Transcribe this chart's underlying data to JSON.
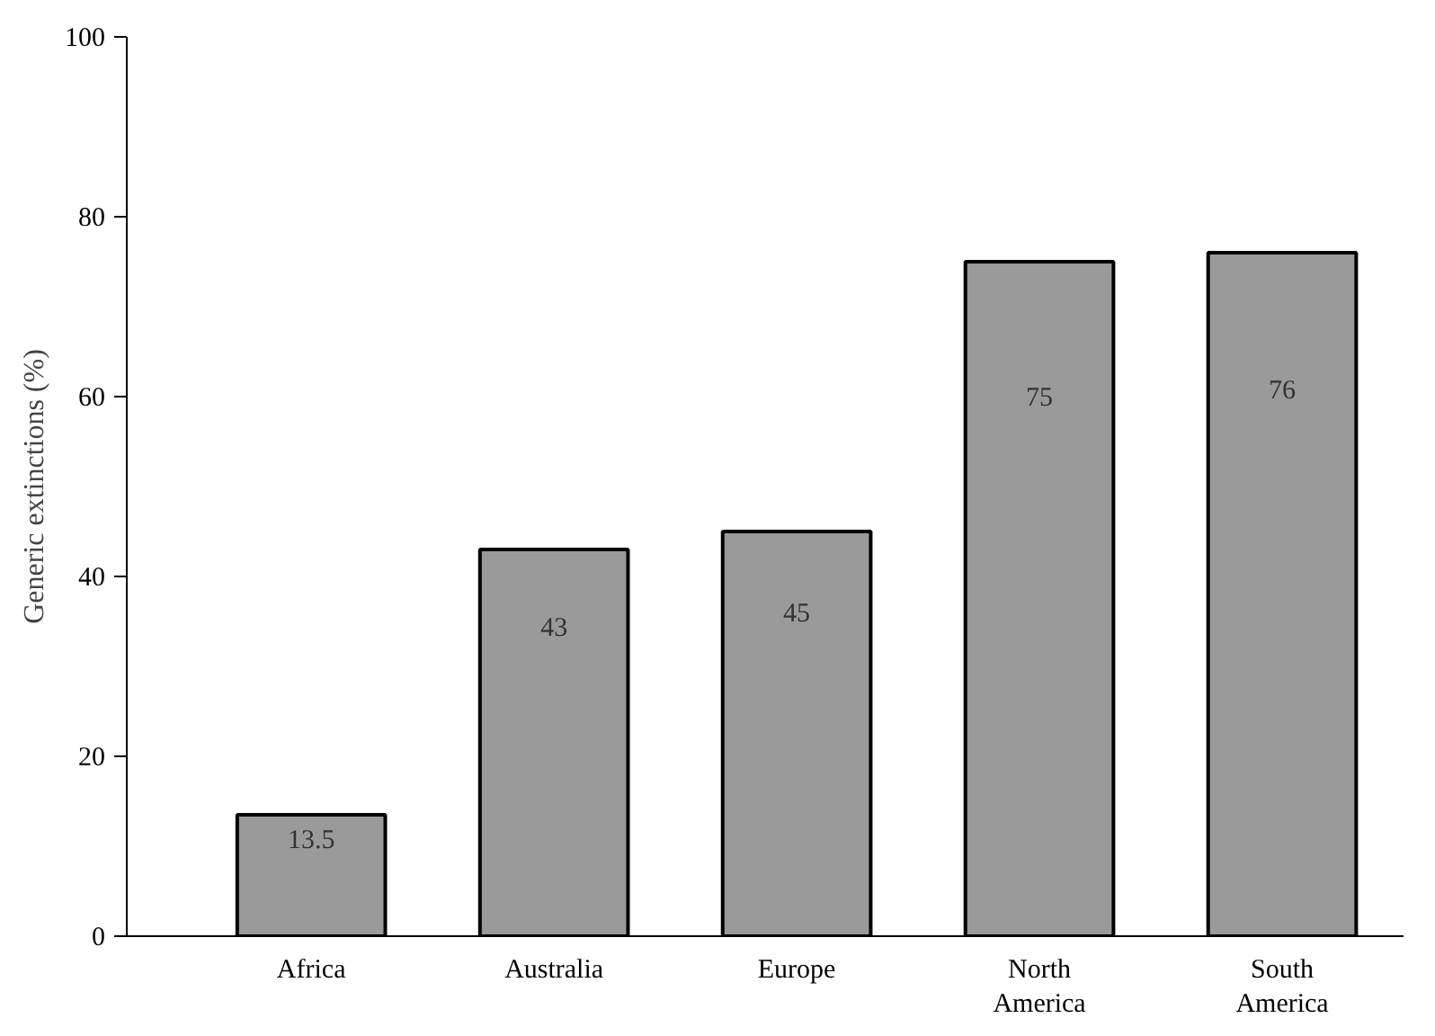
{
  "chart_data": {
    "type": "bar",
    "ylabel": "Generic extinctions (%)",
    "categories": [
      "Africa",
      "Australia",
      "Europe",
      "North\nAmerica",
      "South\nAmerica"
    ],
    "values": [
      13.5,
      43,
      45,
      75,
      76
    ],
    "color": "#9a9a9a",
    "ylim": [
      0,
      100
    ],
    "yticks": [
      0,
      20,
      40,
      60,
      80,
      100
    ],
    "grid": false,
    "data_labels": true
  }
}
